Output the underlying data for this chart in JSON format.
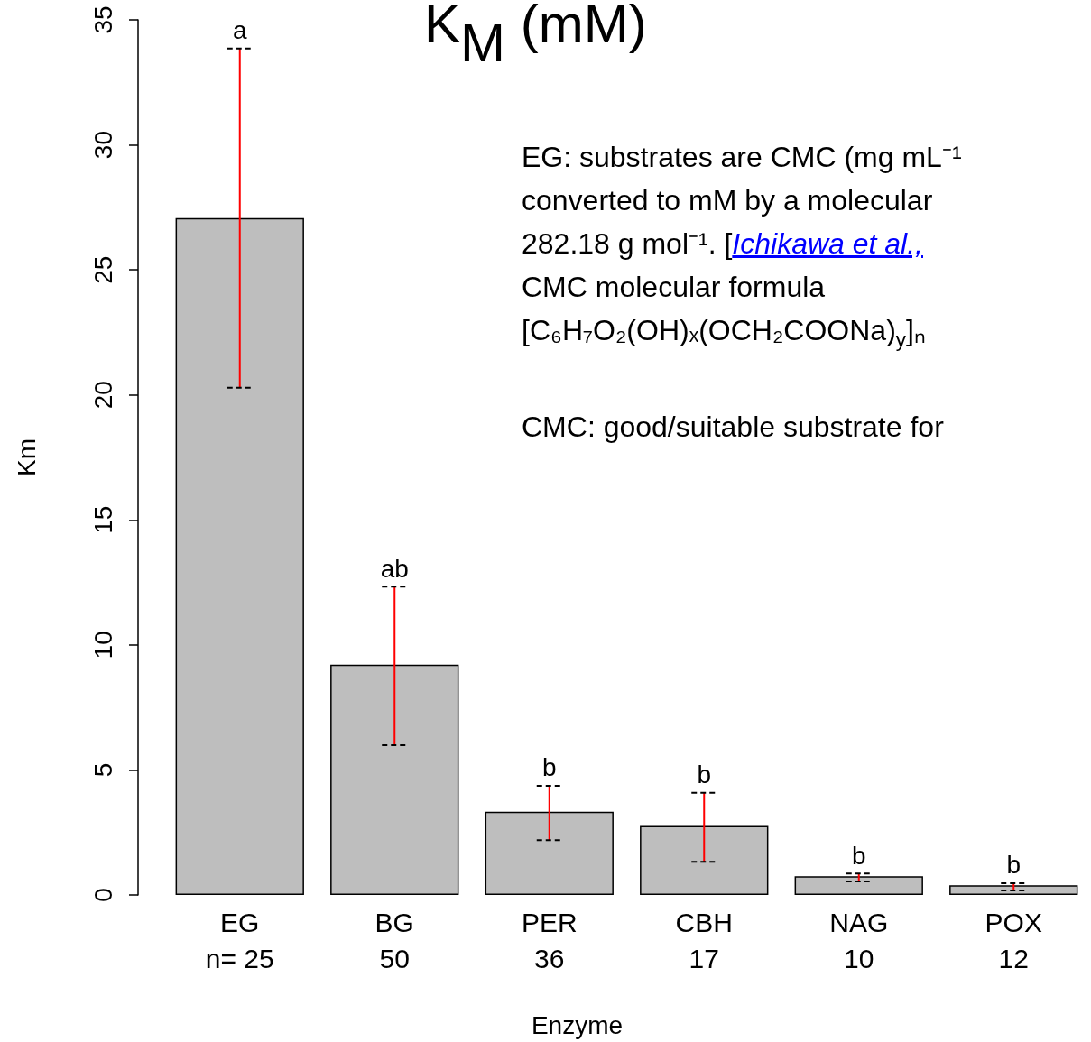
{
  "chart_data": {
    "type": "bar",
    "title": "K$_{M}$ (mM)",
    "xlabel": "Enzyme",
    "ylabel": "Km",
    "categories": [
      "EG\nn= 25",
      "BG\n50",
      "PER\n36",
      "CBH\n17",
      "NAG\n10",
      "POX\n12"
    ],
    "values": [
      27.07,
      9.21,
      3.33,
      2.76,
      0.75,
      0.39
    ],
    "color": "#bebebe",
    "errors": [
      [
        20.29,
        33.85
      ],
      [
        5.99,
        12.33
      ],
      [
        2.19,
        4.37
      ],
      [
        1.33,
        4.09
      ],
      [
        0.54,
        0.86
      ],
      [
        0.18,
        0.47
      ]
    ],
    "ylim": [
      0,
      35
    ],
    "yticks": [
      0,
      5,
      10,
      15,
      20,
      25,
      30,
      35
    ],
    "grid": false,
    "annotations": [
      {
        "text": "a",
        "x": "EG\nn= 25",
        "y": 33.85
      },
      {
        "text": "ab",
        "x": "BG\n50",
        "y": 12.33
      },
      {
        "text": "b",
        "x": "PER\n36",
        "y": 4.37
      },
      {
        "text": "b",
        "x": "CBH\n17",
        "y": 4.09
      },
      {
        "text": "b",
        "x": "NAG\n10",
        "y": 0.86
      },
      {
        "text": "b",
        "x": "POX\n12",
        "y": 0.47
      },
      "EG: substrates are CMC (mg mL⁻¹",
      "converted to mM by a molecular",
      "282.18 g mol⁻¹.  [",
      "Ichikawa et al.,",
      "CMC molecular formula",
      "[C₆H₇O₂(OH)ₓ(OCH₂COONa)$_{y}$]ₙ",
      "CMC: good/suitable substrate for"
    ]
  }
}
